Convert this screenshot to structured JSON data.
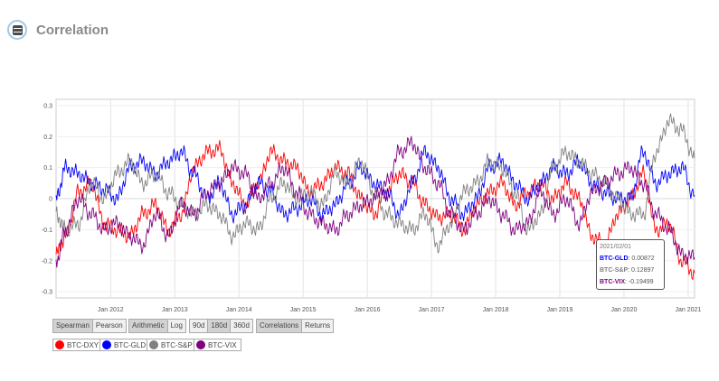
{
  "header": {
    "title": "Correlation"
  },
  "controls": {
    "method": [
      "Spearman",
      "Pearson"
    ],
    "scale": [
      "Arithmetic",
      "Log"
    ],
    "window": [
      "90d",
      "180d",
      "360d"
    ],
    "view": [
      "Correlations",
      "Returns"
    ]
  },
  "legend": [
    {
      "label": "BTC-DXY",
      "color": "#ff0000"
    },
    {
      "label": "BTC-GLD",
      "color": "#0000ff"
    },
    {
      "label": "BTC-S&P",
      "color": "#808080"
    },
    {
      "label": "BTC-VIX",
      "color": "#800080"
    }
  ],
  "tooltip": {
    "date": "2021/02/01",
    "rows": [
      {
        "series": "BTC-GLD",
        "value": "0.00872",
        "color": "#0000ff"
      },
      {
        "series": "BTC-S&P",
        "value": "0.12897",
        "color": "#808080"
      },
      {
        "series": "BTC-VIX",
        "value": "-0.19499",
        "color": "#800080"
      }
    ]
  },
  "chart_data": {
    "type": "line",
    "x_range": [
      2011.15,
      2021.1
    ],
    "ylim": [
      -0.32,
      0.32
    ],
    "y_ticks": [
      0.3,
      0.2,
      0.1,
      0,
      -0.1,
      -0.2,
      -0.3
    ],
    "y_tick_labels": [
      "0.3",
      "0.2",
      "0.1",
      "0",
      "-0.1",
      "-0.2",
      "-0.3"
    ],
    "x_ticks": [
      2012,
      2013,
      2014,
      2015,
      2016,
      2017,
      2018,
      2019,
      2020,
      2021
    ],
    "x_tick_labels": [
      "Jan 2012",
      "Jan 2013",
      "Jan 2014",
      "Jan 2015",
      "Jan 2016",
      "Jan 2017",
      "Jan 2018",
      "Jan 2019",
      "Jan 2020",
      "Jan 2021"
    ],
    "grid": true,
    "series": [
      {
        "name": "BTC-DXY",
        "color": "#ff0000",
        "x": [
          2011.15,
          2011.3,
          2011.5,
          2011.7,
          2011.9,
          2012.1,
          2012.3,
          2012.5,
          2012.7,
          2012.9,
          2013.1,
          2013.3,
          2013.5,
          2013.7,
          2013.9,
          2014.1,
          2014.3,
          2014.5,
          2014.7,
          2014.9,
          2015.1,
          2015.3,
          2015.5,
          2015.7,
          2015.9,
          2016.1,
          2016.3,
          2016.5,
          2016.7,
          2016.9,
          2017.1,
          2017.3,
          2017.5,
          2017.7,
          2017.9,
          2018.1,
          2018.3,
          2018.5,
          2018.7,
          2018.9,
          2019.1,
          2019.3,
          2019.5,
          2019.7,
          2019.9,
          2020.1,
          2020.3,
          2020.5,
          2020.7,
          2020.9,
          2021.1
        ],
        "y": [
          -0.18,
          -0.12,
          0.02,
          0.05,
          -0.08,
          -0.1,
          -0.12,
          -0.05,
          -0.02,
          -0.1,
          -0.05,
          0.1,
          0.15,
          0.16,
          0.05,
          -0.02,
          0.05,
          0.15,
          0.12,
          0.1,
          0.02,
          0.05,
          0.1,
          0.08,
          0.0,
          -0.05,
          0.02,
          0.08,
          0.05,
          -0.02,
          -0.06,
          -0.05,
          -0.1,
          -0.02,
          0.02,
          0.05,
          -0.02,
          0.02,
          0.05,
          0.0,
          0.05,
          0.0,
          -0.12,
          -0.15,
          -0.05,
          0.0,
          0.08,
          -0.1,
          -0.08,
          -0.2,
          -0.24
        ]
      },
      {
        "name": "BTC-GLD",
        "color": "#0000ff",
        "x": [
          2011.15,
          2011.3,
          2011.5,
          2011.7,
          2011.9,
          2012.1,
          2012.3,
          2012.5,
          2012.7,
          2012.9,
          2013.1,
          2013.3,
          2013.5,
          2013.7,
          2013.9,
          2014.1,
          2014.3,
          2014.5,
          2014.7,
          2014.9,
          2015.1,
          2015.3,
          2015.5,
          2015.7,
          2015.9,
          2016.1,
          2016.3,
          2016.5,
          2016.7,
          2016.9,
          2017.1,
          2017.3,
          2017.5,
          2017.7,
          2017.9,
          2018.1,
          2018.3,
          2018.5,
          2018.7,
          2018.9,
          2019.1,
          2019.3,
          2019.5,
          2019.7,
          2019.9,
          2020.1,
          2020.3,
          2020.5,
          2020.7,
          2020.9,
          2021.1
        ],
        "y": [
          0.0,
          0.1,
          0.08,
          0.05,
          0.03,
          0.0,
          0.1,
          0.12,
          0.08,
          0.12,
          0.15,
          0.08,
          0.0,
          0.05,
          -0.05,
          -0.02,
          0.05,
          0.02,
          -0.05,
          -0.03,
          0.0,
          -0.05,
          -0.02,
          0.05,
          0.1,
          0.05,
          0.02,
          -0.05,
          0.05,
          0.15,
          0.1,
          0.0,
          -0.05,
          0.0,
          0.1,
          0.12,
          0.05,
          0.0,
          0.05,
          0.1,
          0.08,
          0.12,
          0.05,
          0.02,
          0.0,
          0.0,
          0.15,
          0.05,
          0.08,
          0.1,
          0.01
        ]
      },
      {
        "name": "BTC-S&P",
        "color": "#808080",
        "x": [
          2011.15,
          2011.3,
          2011.5,
          2011.7,
          2011.9,
          2012.1,
          2012.3,
          2012.5,
          2012.7,
          2012.9,
          2013.1,
          2013.3,
          2013.5,
          2013.7,
          2013.9,
          2014.1,
          2014.3,
          2014.5,
          2014.7,
          2014.9,
          2015.1,
          2015.3,
          2015.5,
          2015.7,
          2015.9,
          2016.1,
          2016.3,
          2016.5,
          2016.7,
          2016.9,
          2017.1,
          2017.3,
          2017.5,
          2017.7,
          2017.9,
          2018.1,
          2018.3,
          2018.5,
          2018.7,
          2018.9,
          2019.1,
          2019.3,
          2019.5,
          2019.7,
          2019.9,
          2020.1,
          2020.3,
          2020.5,
          2020.7,
          2020.9,
          2021.1
        ],
        "y": [
          -0.05,
          -0.1,
          -0.08,
          0.05,
          0.0,
          0.08,
          0.12,
          0.05,
          0.08,
          0.02,
          -0.02,
          -0.05,
          -0.02,
          -0.05,
          -0.12,
          -0.08,
          -0.1,
          0.0,
          0.05,
          0.0,
          0.02,
          -0.02,
          0.08,
          0.05,
          0.12,
          0.02,
          -0.05,
          -0.08,
          -0.1,
          -0.05,
          -0.15,
          -0.08,
          0.02,
          0.05,
          0.12,
          0.1,
          0.02,
          -0.1,
          -0.05,
          0.1,
          0.15,
          0.12,
          0.08,
          0.05,
          0.0,
          -0.05,
          -0.05,
          0.15,
          0.25,
          0.22,
          0.13
        ]
      },
      {
        "name": "BTC-VIX",
        "color": "#800080",
        "x": [
          2011.15,
          2011.3,
          2011.5,
          2011.7,
          2011.9,
          2012.1,
          2012.3,
          2012.5,
          2012.7,
          2012.9,
          2013.1,
          2013.3,
          2013.5,
          2013.7,
          2013.9,
          2014.1,
          2014.3,
          2014.5,
          2014.7,
          2014.9,
          2015.1,
          2015.3,
          2015.5,
          2015.7,
          2015.9,
          2016.1,
          2016.3,
          2016.5,
          2016.7,
          2016.9,
          2017.1,
          2017.3,
          2017.5,
          2017.7,
          2017.9,
          2018.1,
          2018.3,
          2018.5,
          2018.7,
          2018.9,
          2019.1,
          2019.3,
          2019.5,
          2019.7,
          2019.9,
          2020.1,
          2020.3,
          2020.5,
          2020.7,
          2020.9,
          2021.1
        ],
        "y": [
          -0.2,
          -0.1,
          0.0,
          -0.05,
          -0.1,
          -0.08,
          -0.12,
          -0.15,
          -0.05,
          -0.12,
          -0.02,
          -0.05,
          0.02,
          0.05,
          0.1,
          0.08,
          0.0,
          0.05,
          0.1,
          0.02,
          -0.05,
          -0.08,
          -0.1,
          -0.05,
          -0.02,
          0.0,
          0.05,
          0.15,
          0.18,
          0.1,
          0.05,
          -0.05,
          -0.1,
          -0.05,
          0.0,
          -0.05,
          -0.1,
          -0.08,
          0.02,
          -0.05,
          0.0,
          -0.08,
          0.02,
          0.05,
          0.08,
          0.1,
          0.05,
          -0.05,
          -0.1,
          -0.18,
          -0.19
        ]
      }
    ]
  }
}
